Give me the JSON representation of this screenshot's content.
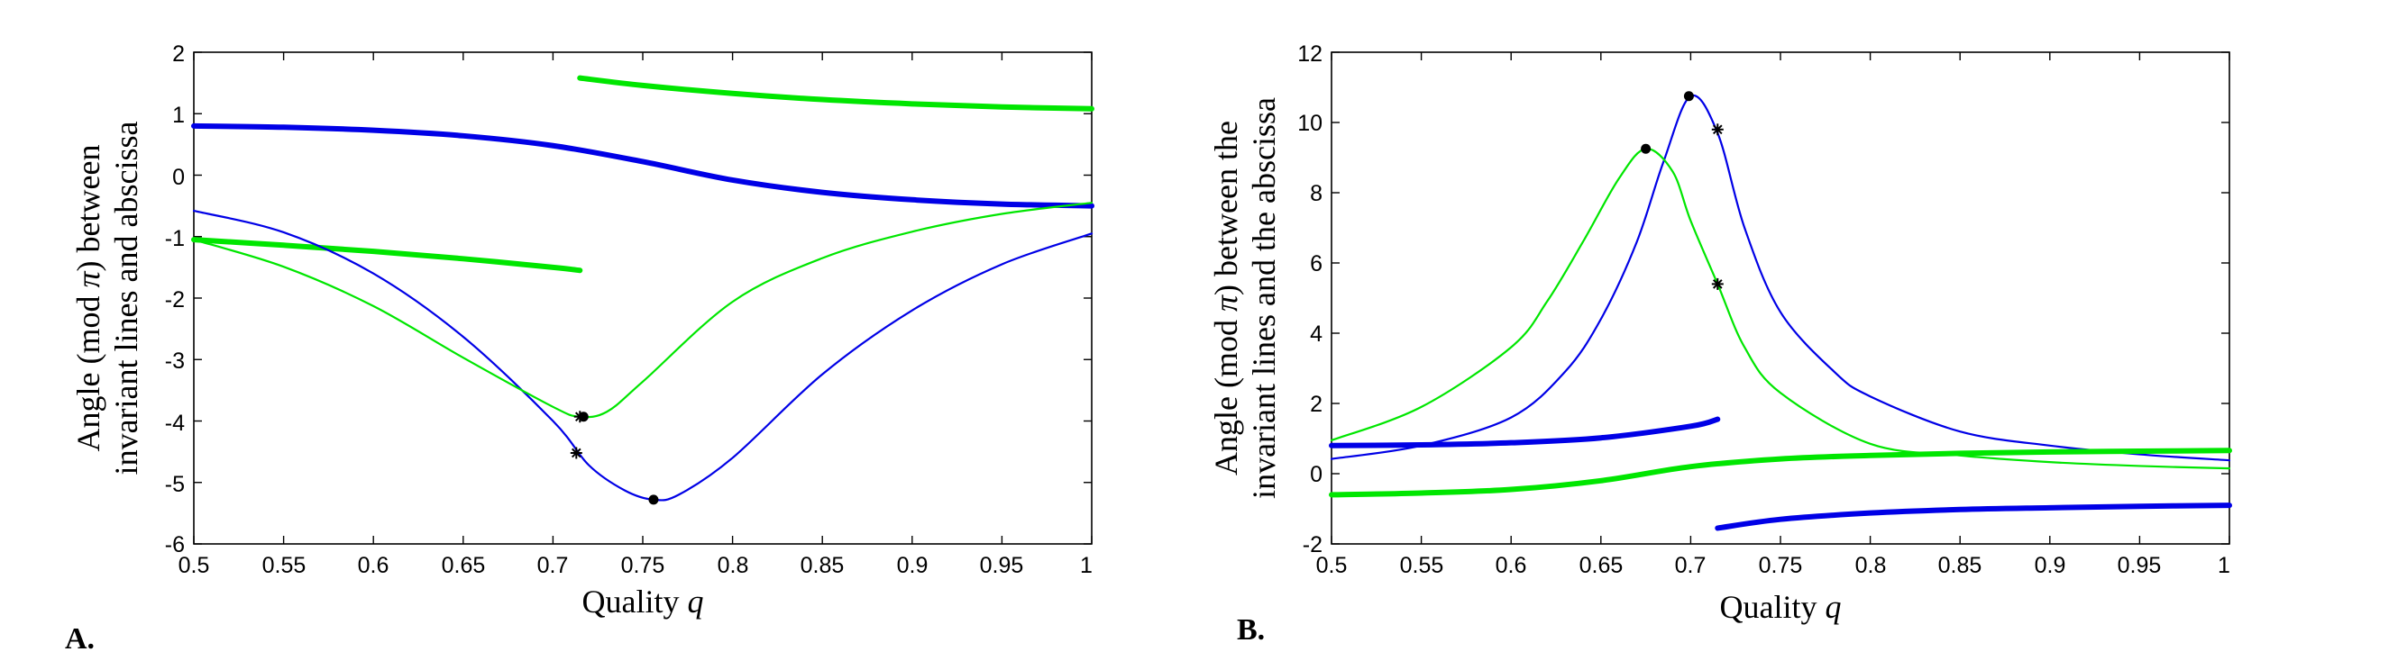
{
  "colors": {
    "blue": "#0000e6",
    "green": "#00e600",
    "marker": "#000000"
  },
  "chart_data": [
    {
      "panel": "A.",
      "type": "line",
      "xlabel_prefix": "Quality ",
      "xlabel_var": "q",
      "ylabel_line1_pre": "Angle (mod ",
      "ylabel_line1_sym": "π",
      "ylabel_line1_post": ") between",
      "ylabel_line2": "invariant lines and abscissa",
      "xlim": [
        0.5,
        1
      ],
      "ylim": [
        -6,
        2
      ],
      "xticks": [
        "0.5",
        "0.55",
        "0.6",
        "0.65",
        "0.7",
        "0.75",
        "0.8",
        "0.85",
        "0.9",
        "0.95",
        "1"
      ],
      "yticks": [
        "-6",
        "-5",
        "-4",
        "-3",
        "-2",
        "-1",
        "0",
        "1",
        "2"
      ],
      "series": [
        {
          "name": "blue-thick-upper",
          "color": "blue",
          "width": "thick",
          "x": [
            0.5,
            0.55,
            0.6,
            0.65,
            0.7,
            0.75,
            0.8,
            0.85,
            0.9,
            0.95,
            1.0
          ],
          "y": [
            0.8,
            0.78,
            0.73,
            0.64,
            0.48,
            0.22,
            -0.08,
            -0.28,
            -0.4,
            -0.47,
            -0.5
          ]
        },
        {
          "name": "green-thick-upper",
          "color": "green",
          "width": "thick",
          "x": [
            0.715,
            0.75,
            0.8,
            0.85,
            0.9,
            0.95,
            1.0
          ],
          "y": [
            1.58,
            1.46,
            1.33,
            1.23,
            1.16,
            1.11,
            1.08
          ]
        },
        {
          "name": "green-thick-lower",
          "color": "green",
          "width": "thick",
          "x": [
            0.5,
            0.55,
            0.6,
            0.65,
            0.7,
            0.715
          ],
          "y": [
            -1.05,
            -1.14,
            -1.24,
            -1.36,
            -1.5,
            -1.55
          ]
        },
        {
          "name": "blue-thin",
          "color": "blue",
          "width": "thin",
          "x": [
            0.5,
            0.55,
            0.6,
            0.65,
            0.7,
            0.72,
            0.74,
            0.756,
            0.77,
            0.8,
            0.85,
            0.9,
            0.95,
            1.0
          ],
          "y": [
            -0.58,
            -0.93,
            -1.6,
            -2.63,
            -4.0,
            -4.72,
            -5.13,
            -5.28,
            -5.2,
            -4.6,
            -3.24,
            -2.2,
            -1.45,
            -0.95
          ]
        },
        {
          "name": "green-thin",
          "color": "green",
          "width": "thin",
          "x": [
            0.5,
            0.55,
            0.6,
            0.65,
            0.7,
            0.715,
            0.73,
            0.75,
            0.8,
            0.85,
            0.9,
            0.95,
            1.0
          ],
          "y": [
            -1.05,
            -1.49,
            -2.13,
            -2.97,
            -3.77,
            -3.93,
            -3.85,
            -3.36,
            -2.06,
            -1.35,
            -0.92,
            -0.63,
            -0.45
          ]
        }
      ],
      "markers": [
        {
          "x": 0.715,
          "y": -3.93,
          "symbol": "star"
        },
        {
          "x": 0.717,
          "y": -3.93,
          "symbol": "dot"
        },
        {
          "x": 0.713,
          "y": -4.52,
          "symbol": "star"
        },
        {
          "x": 0.756,
          "y": -5.28,
          "symbol": "dot"
        }
      ]
    },
    {
      "panel": "B.",
      "type": "line",
      "xlabel_prefix": "Quality ",
      "xlabel_var": "q",
      "ylabel_line1_pre": "Angle (mod ",
      "ylabel_line1_sym": "π",
      "ylabel_line1_post": ") between the",
      "ylabel_line2": "invariant lines and the abscissa",
      "xlim": [
        0.5,
        1
      ],
      "ylim": [
        -2,
        12
      ],
      "xticks": [
        "0.5",
        "0.55",
        "0.6",
        "0.65",
        "0.7",
        "0.75",
        "0.8",
        "0.85",
        "0.9",
        "0.95",
        "1"
      ],
      "yticks": [
        "-2",
        "0",
        "2",
        "4",
        "6",
        "8",
        "10",
        "12"
      ],
      "series": [
        {
          "name": "blue-thin",
          "color": "blue",
          "width": "thin",
          "x": [
            0.5,
            0.55,
            0.6,
            0.63,
            0.65,
            0.67,
            0.685,
            0.7,
            0.715,
            0.73,
            0.75,
            0.78,
            0.8,
            0.85,
            0.9,
            0.95,
            1.0
          ],
          "y": [
            0.42,
            0.8,
            1.6,
            2.9,
            4.4,
            6.6,
            8.9,
            10.75,
            9.7,
            7.0,
            4.6,
            2.9,
            2.2,
            1.2,
            0.8,
            0.55,
            0.38
          ]
        },
        {
          "name": "green-thin",
          "color": "green",
          "width": "thin",
          "x": [
            0.5,
            0.55,
            0.6,
            0.62,
            0.64,
            0.66,
            0.675,
            0.69,
            0.7,
            0.715,
            0.73,
            0.75,
            0.8,
            0.85,
            0.9,
            0.95,
            1.0
          ],
          "y": [
            0.95,
            1.9,
            3.6,
            4.9,
            6.6,
            8.4,
            9.25,
            8.6,
            7.2,
            5.4,
            3.6,
            2.3,
            0.85,
            0.52,
            0.33,
            0.22,
            0.15
          ]
        },
        {
          "name": "blue-thick-upper",
          "color": "blue",
          "width": "thick",
          "x": [
            0.5,
            0.55,
            0.6,
            0.65,
            0.7,
            0.715
          ],
          "y": [
            0.8,
            0.82,
            0.88,
            1.02,
            1.35,
            1.55
          ]
        },
        {
          "name": "green-thick",
          "color": "green",
          "width": "thick",
          "x": [
            0.5,
            0.55,
            0.6,
            0.65,
            0.7,
            0.75,
            0.8,
            0.85,
            0.9,
            0.95,
            1.0
          ],
          "y": [
            -0.6,
            -0.55,
            -0.45,
            -0.2,
            0.2,
            0.42,
            0.52,
            0.58,
            0.62,
            0.64,
            0.66
          ]
        },
        {
          "name": "blue-thick-lower",
          "color": "blue",
          "width": "thick",
          "x": [
            0.715,
            0.75,
            0.8,
            0.85,
            0.9,
            0.95,
            1.0
          ],
          "y": [
            -1.55,
            -1.3,
            -1.12,
            -1.02,
            -0.97,
            -0.93,
            -0.9
          ]
        }
      ],
      "markers": [
        {
          "x": 0.675,
          "y": 9.25,
          "symbol": "dot"
        },
        {
          "x": 0.699,
          "y": 10.75,
          "symbol": "dot"
        },
        {
          "x": 0.715,
          "y": 9.8,
          "symbol": "star"
        },
        {
          "x": 0.715,
          "y": 5.4,
          "symbol": "star"
        }
      ]
    }
  ]
}
